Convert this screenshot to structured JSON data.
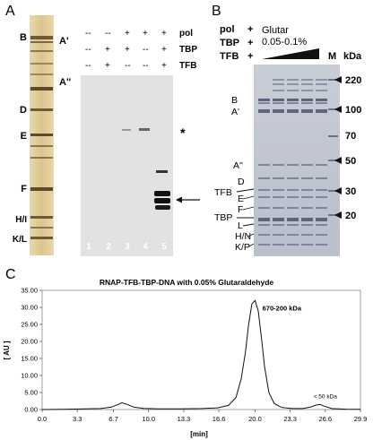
{
  "panel_a": {
    "letter": "A",
    "silver_lane_labels": [
      "B",
      "A'",
      "A''",
      "D",
      "E",
      "F",
      "H/I",
      "K/L"
    ],
    "condition_rows": [
      {
        "name": "pol",
        "marks": [
          "--",
          "--",
          "+",
          "+",
          "+"
        ]
      },
      {
        "name": "TBP",
        "marks": [
          "--",
          "+",
          "+",
          "--",
          "+"
        ]
      },
      {
        "name": "TFB",
        "marks": [
          "--",
          "+",
          "--",
          "--",
          "+"
        ]
      }
    ],
    "lane_numbers": [
      "1",
      "2",
      "3",
      "4",
      "5"
    ],
    "asterisk": "*",
    "arrow": "←"
  },
  "panel_b": {
    "letter": "B",
    "cond_labels": [
      "pol",
      "TBP",
      "TFB"
    ],
    "cond_marks": [
      "+",
      "+",
      "+"
    ],
    "glutar_title": "Glutar",
    "glutar_range": "0.05-0.1%",
    "marker_label": "M",
    "kda_label": "kDa",
    "mw_ticks": [
      "220",
      "100",
      "70",
      "50",
      "30",
      "20"
    ],
    "band_labels": [
      "B",
      "A'",
      "A''",
      "D",
      "TFB",
      "E",
      "F",
      "TBP",
      "L",
      "H/N",
      "K/P"
    ]
  },
  "panel_c": {
    "letter": "C",
    "title": "RNAP-TFB-TBP-DNA with 0.05% Glutaraldehyde",
    "ylabel": "[ AU ]",
    "xlabel": "[min]",
    "annotations": [
      "670-200 kDa",
      "< 50 kDa"
    ]
  },
  "chart_data": {
    "type": "line",
    "title": "RNAP-TFB-TBP-DNA with 0.05% Glutaraldehyde",
    "xlabel": "[min]",
    "ylabel": "[ AU ]",
    "xlim": [
      0.0,
      29.9
    ],
    "ylim": [
      0.0,
      35.0
    ],
    "x_ticks": [
      "0.0",
      "3.3",
      "6.7",
      "10.0",
      "13.3",
      "16.6",
      "20.0",
      "23.3",
      "26.6",
      "29.9"
    ],
    "y_ticks": [
      "0.00",
      "5.00",
      "10.00",
      "15.00",
      "20.00",
      "25.00",
      "30.00",
      "35.00"
    ],
    "series": [
      {
        "x": [
          0.0,
          2.0,
          4.0,
          5.5,
          6.5,
          7.0,
          7.5,
          8.0,
          8.6,
          9.5,
          11.0,
          13.0,
          15.0,
          16.5,
          17.5,
          18.2,
          18.7,
          19.1,
          19.4,
          19.7,
          20.0,
          20.3,
          20.6,
          20.9,
          21.3,
          21.8,
          22.5,
          23.5,
          24.5,
          25.2,
          25.7,
          26.1,
          26.5,
          27.2,
          28.5,
          29.9
        ],
        "y": [
          0.0,
          0.05,
          0.2,
          0.3,
          0.7,
          1.3,
          2.0,
          1.5,
          0.7,
          0.35,
          0.2,
          0.2,
          0.3,
          0.5,
          1.2,
          3.5,
          9.0,
          17.0,
          25.0,
          31.0,
          32.0,
          29.0,
          21.0,
          12.5,
          5.0,
          1.8,
          0.6,
          0.3,
          0.3,
          0.7,
          1.3,
          1.5,
          1.0,
          0.3,
          0.1,
          0.05
        ]
      }
    ],
    "annotations": [
      {
        "text": "670-200 kDa",
        "x": 20.1,
        "y": 32.0
      },
      {
        "text": "< 50 kDa",
        "x": 26.0,
        "y": 1.5
      }
    ],
    "grid": false
  }
}
